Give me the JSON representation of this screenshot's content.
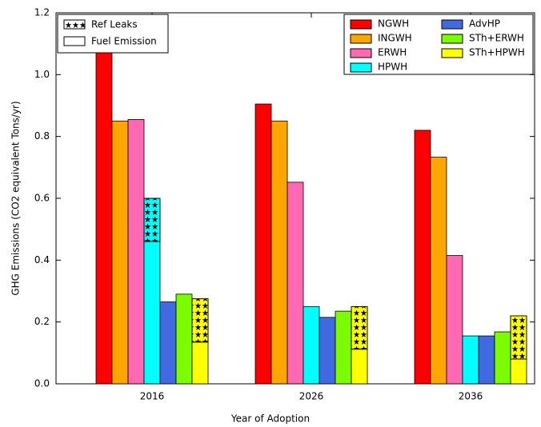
{
  "chart_data": {
    "type": "bar",
    "x_label": "Year of Adoption",
    "y_label": "GHG Emissions (CO2 equivalent Tons/yr)",
    "categories": [
      "2016",
      "2026",
      "2036"
    ],
    "ylim": [
      0,
      1.2
    ],
    "yticks": [
      {
        "value": 0,
        "label": "0.0"
      },
      0.2,
      0.4,
      0.6,
      0.8,
      {
        "value": 1,
        "label": "1.0"
      },
      1.2
    ],
    "stack_legend": {
      "ref_leaks": "Ref Leaks",
      "fuel": "Fuel Emission"
    },
    "series": [
      {
        "name": "NGWH",
        "color": "#ff0000",
        "values": [
          1.09,
          0.905,
          0.82
        ]
      },
      {
        "name": "INGWH",
        "color": "#ffa500",
        "values": [
          0.85,
          0.85,
          0.733
        ]
      },
      {
        "name": "ERWH",
        "color": "#ff69b4",
        "values": [
          0.855,
          0.652,
          0.415
        ]
      },
      {
        "name": "HPWH",
        "color": "#00ffff",
        "values": [
          0.46,
          0.25,
          0.155
        ],
        "ref_leaks": [
          0.14,
          null,
          null
        ]
      },
      {
        "name": "AdvHP",
        "color": "#4169e1",
        "values": [
          0.265,
          0.215,
          0.155
        ]
      },
      {
        "name": "STh+ERWH",
        "color": "#7cfc00",
        "values": [
          0.29,
          0.235,
          0.168
        ]
      },
      {
        "name": "STh+HPWH",
        "color": "#ffff00",
        "values": [
          0.135,
          0.112,
          0.08
        ],
        "ref_leaks": [
          0.14,
          0.138,
          0.14
        ]
      }
    ]
  }
}
